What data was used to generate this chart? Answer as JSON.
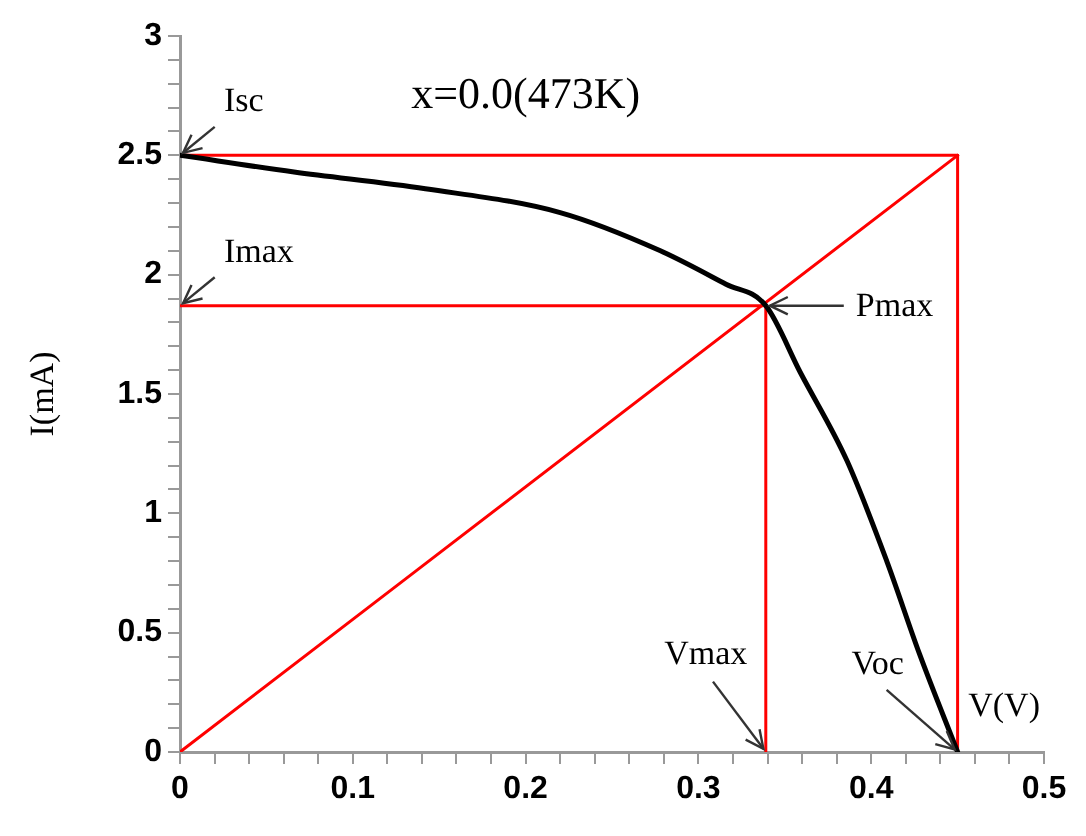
{
  "chart_data": {
    "type": "line",
    "title": "x=0.0(473K)",
    "xlabel": "V(V)",
    "ylabel": "I(mA)",
    "series": [
      {
        "color": "#000000",
        "x": [
          0,
          0.066,
          0.142,
          0.22,
          0.278,
          0.316,
          0.339,
          0.359,
          0.386,
          0.409,
          0.428,
          0.45
        ],
        "values": [
          2.5,
          2.43,
          2.36,
          2.26,
          2.1,
          1.96,
          1.87,
          1.59,
          1.22,
          0.8,
          0.41,
          0
        ]
      },
      {
        "color": "#ff0000",
        "x": [
          0,
          0.45
        ],
        "values": [
          2.5,
          2.5
        ]
      },
      {
        "color": "#ff0000",
        "x": [
          0.45,
          0.45
        ],
        "values": [
          2.5,
          0
        ]
      },
      {
        "color": "#ff0000",
        "x": [
          0,
          0.45
        ],
        "values": [
          0,
          2.5
        ]
      },
      {
        "color": "#ff0000",
        "x": [
          0,
          0.339
        ],
        "values": [
          1.87,
          1.87
        ]
      },
      {
        "color": "#ff0000",
        "x": [
          0.339,
          0.339
        ],
        "values": [
          1.87,
          0
        ]
      }
    ],
    "annotations": [
      {
        "text": "Isc",
        "x": 0,
        "y": 2.5
      },
      {
        "text": "Imax",
        "x": 0,
        "y": 1.87
      },
      {
        "text": "Pmax",
        "x": 0.339,
        "y": 1.87
      },
      {
        "text": "Vmax",
        "x": 0.339,
        "y": 0
      },
      {
        "text": "Voc",
        "x": 0.45,
        "y": 0
      }
    ],
    "xlim": [
      0,
      0.5
    ],
    "ylim": [
      0,
      3
    ],
    "xticks": [
      0,
      {
        "value": 0.02,
        "label": null
      },
      {
        "value": 0.04,
        "label": null
      },
      {
        "value": 0.06,
        "label": null
      },
      {
        "value": 0.08,
        "label": null
      },
      0.1,
      {
        "value": 0.12,
        "label": null
      },
      {
        "value": 0.14,
        "label": null
      },
      {
        "value": 0.16,
        "label": null
      },
      {
        "value": 0.18,
        "label": null
      },
      0.2,
      {
        "value": 0.22,
        "label": null
      },
      {
        "value": 0.24,
        "label": null
      },
      {
        "value": 0.26,
        "label": null
      },
      {
        "value": 0.28,
        "label": null
      },
      0.3,
      {
        "value": 0.32,
        "label": null
      },
      {
        "value": 0.34,
        "label": null
      },
      {
        "value": 0.36,
        "label": null
      },
      {
        "value": 0.38,
        "label": null
      },
      0.4,
      {
        "value": 0.42,
        "label": null
      },
      {
        "value": 0.44,
        "label": null
      },
      {
        "value": 0.46,
        "label": null
      },
      {
        "value": 0.48,
        "label": null
      },
      0.5
    ],
    "yticks": [
      0,
      {
        "value": 0.1,
        "label": null
      },
      {
        "value": 0.2,
        "label": null
      },
      {
        "value": 0.3,
        "label": null
      },
      {
        "value": 0.4,
        "label": null
      },
      0.5,
      {
        "value": 0.6,
        "label": null
      },
      {
        "value": 0.7,
        "label": null
      },
      {
        "value": 0.8,
        "label": null
      },
      {
        "value": 0.9,
        "label": null
      },
      1,
      {
        "value": 1.1,
        "label": null
      },
      {
        "value": 1.2,
        "label": null
      },
      {
        "value": 1.3,
        "label": null
      },
      {
        "value": 1.4,
        "label": null
      },
      1.5,
      {
        "value": 1.6,
        "label": null
      },
      {
        "value": 1.7,
        "label": null
      },
      {
        "value": 1.8,
        "label": null
      },
      {
        "value": 1.9,
        "label": null
      },
      2,
      {
        "value": 2.1,
        "label": null
      },
      {
        "value": 2.2,
        "label": null
      },
      {
        "value": 2.3,
        "label": null
      },
      {
        "value": 2.4,
        "label": null
      },
      2.5,
      {
        "value": 2.6,
        "label": null
      },
      {
        "value": 2.7,
        "label": null
      },
      {
        "value": 2.8,
        "label": null
      },
      {
        "value": 2.9,
        "label": null
      },
      3
    ],
    "grid": false,
    "legend": false,
    "marker": "none",
    "line_style": "solid"
  }
}
